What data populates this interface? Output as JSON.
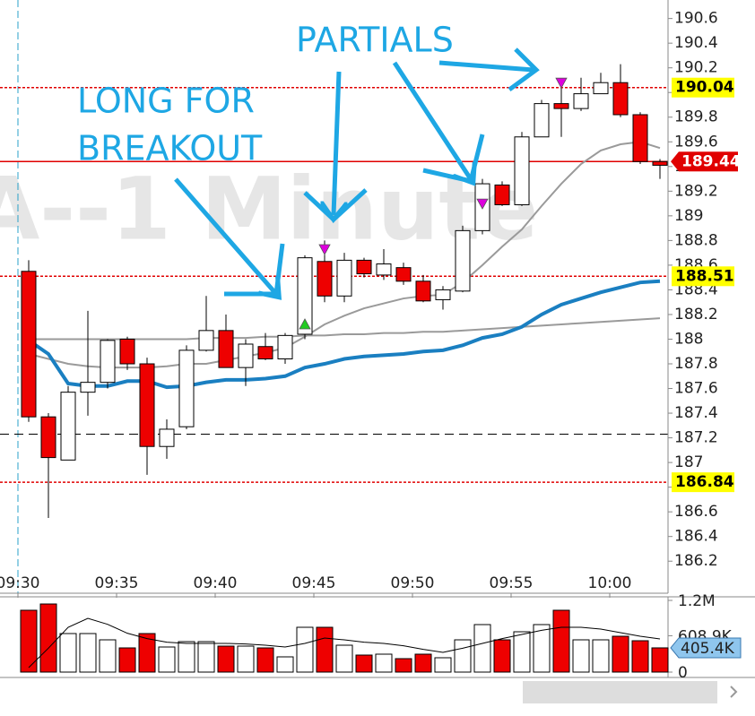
{
  "chart_data": {
    "type": "candlestick",
    "watermark": "A--1 Minute",
    "annotations": [
      "LONG FOR",
      "BREAKOUT",
      "PARTIALS"
    ],
    "ylim": [
      185.94,
      190.75
    ],
    "yticks": [
      186.2,
      186.4,
      186.6,
      186.8,
      187,
      187.2,
      187.4,
      187.6,
      187.8,
      188,
      188.2,
      188.4,
      188.6,
      188.8,
      189,
      189.2,
      189.4,
      189.6,
      189.8,
      190,
      190.2,
      190.4,
      190.6
    ],
    "xticks": [
      {
        "value": 0,
        "label": "09:30"
      },
      {
        "value": 5,
        "label": "09:35"
      },
      {
        "value": 10,
        "label": "09:40"
      },
      {
        "value": 15,
        "label": "09:45"
      },
      {
        "value": 20,
        "label": "09:50"
      },
      {
        "value": 25,
        "label": "09:55"
      },
      {
        "value": 30,
        "label": "10:00"
      }
    ],
    "up_color": "#ffffff",
    "down_color": "#ee0000",
    "candles": {
      "open": [
        188.55,
        187.37,
        187.02,
        187.57,
        187.65,
        188.0,
        187.8,
        187.13,
        187.29,
        187.91,
        188.07,
        187.77,
        187.94,
        187.84,
        188.04,
        188.63,
        188.35,
        188.64,
        188.52,
        188.58,
        188.47,
        188.32,
        188.39,
        188.88,
        189.25,
        189.09,
        189.64,
        189.91,
        189.87,
        189.99,
        190.08,
        189.82,
        189.44
      ],
      "high": [
        188.64,
        187.4,
        187.62,
        188.23,
        188.0,
        188.02,
        187.85,
        187.35,
        187.95,
        188.35,
        188.2,
        188.0,
        188.05,
        188.05,
        188.68,
        188.8,
        188.7,
        188.66,
        188.73,
        188.62,
        188.52,
        188.43,
        188.92,
        189.3,
        189.28,
        189.68,
        189.94,
        190.08,
        190.12,
        190.16,
        190.23,
        189.84,
        189.46
      ],
      "low": [
        187.33,
        186.55,
        187.02,
        187.38,
        187.6,
        187.75,
        186.9,
        187.03,
        187.27,
        187.9,
        187.77,
        187.62,
        187.83,
        187.8,
        188.0,
        188.3,
        188.3,
        188.5,
        188.48,
        188.44,
        188.3,
        188.24,
        188.38,
        188.85,
        189.08,
        189.08,
        189.64,
        189.64,
        189.85,
        189.99,
        189.8,
        189.42,
        189.3
      ],
      "close": [
        187.37,
        187.04,
        187.57,
        187.65,
        187.99,
        187.8,
        187.13,
        187.27,
        187.91,
        188.07,
        187.77,
        187.96,
        187.84,
        188.03,
        188.66,
        188.35,
        188.64,
        188.53,
        188.61,
        188.47,
        188.31,
        188.4,
        188.88,
        189.26,
        189.09,
        189.64,
        189.91,
        189.87,
        189.99,
        190.08,
        189.82,
        189.44,
        189.41
      ]
    },
    "series": [
      {
        "color": "#9a9a9a",
        "line_width": 2,
        "values": [
          188.0,
          188.0,
          188.0,
          188.0,
          188.0,
          188.0,
          188.0,
          188.0,
          188.0,
          188.01,
          188.01,
          188.01,
          188.02,
          188.02,
          188.03,
          188.03,
          188.04,
          188.04,
          188.05,
          188.05,
          188.06,
          188.06,
          188.07,
          188.08,
          188.09,
          188.1,
          188.11,
          188.12,
          188.13,
          188.14,
          188.15,
          188.16,
          188.17
        ]
      },
      {
        "color": "#9a9a9a",
        "line_width": 2,
        "values": [
          187.88,
          187.84,
          187.8,
          187.78,
          187.77,
          187.77,
          187.77,
          187.78,
          187.8,
          187.8,
          187.83,
          187.86,
          187.89,
          187.93,
          188.02,
          188.12,
          188.19,
          188.25,
          188.29,
          188.33,
          188.35,
          188.36,
          188.46,
          188.6,
          188.75,
          188.89,
          189.08,
          189.26,
          189.42,
          189.53,
          189.58,
          189.6,
          189.55
        ]
      },
      {
        "color": "#1a7fc1",
        "line_width": 4,
        "values": [
          187.99,
          187.88,
          187.64,
          187.62,
          187.62,
          187.66,
          187.66,
          187.61,
          187.62,
          187.65,
          187.67,
          187.67,
          187.68,
          187.7,
          187.77,
          187.8,
          187.84,
          187.86,
          187.87,
          187.88,
          187.9,
          187.91,
          187.95,
          188.01,
          188.04,
          188.1,
          188.2,
          188.28,
          188.33,
          188.38,
          188.42,
          188.46,
          188.47
        ]
      }
    ],
    "levels": [
      {
        "value": 190.04,
        "color": "#e00000",
        "style": "dotted",
        "label_color": "#ffff00"
      },
      {
        "value": 188.51,
        "color": "#e00000",
        "style": "dotted",
        "label_color": "#ffff00"
      },
      {
        "value": 186.84,
        "color": "#e00000",
        "style": "dotted",
        "label_color": "#ffff00"
      },
      {
        "value": 189.44,
        "color": "#e00000",
        "style": "solid",
        "label_color": "#e00000"
      },
      {
        "value": 187.23,
        "color": "#000000",
        "style": "dashed"
      }
    ],
    "markers": [
      {
        "x": 14,
        "y": 188.12,
        "direction": "up",
        "color": "#22cc22"
      },
      {
        "x": 15,
        "y": 188.73,
        "direction": "down",
        "color": "#dd00dd"
      },
      {
        "x": 23,
        "y": 189.1,
        "direction": "down",
        "color": "#dd00dd"
      },
      {
        "x": 27,
        "y": 190.08,
        "direction": "down",
        "color": "#dd00dd"
      }
    ],
    "volume": {
      "ylim": [
        0,
        1200000
      ],
      "yticks": [
        0,
        {
          "value": 608900,
          "label": "608.9K"
        },
        {
          "value": 1200000,
          "label": "1.2M"
        }
      ],
      "values": [
        1035000,
        1140000,
        645000,
        645000,
        540000,
        405000,
        645000,
        420000,
        510000,
        510000,
        435000,
        435000,
        405000,
        255000,
        750000,
        750000,
        450000,
        285000,
        300000,
        225000,
        300000,
        240000,
        540000,
        795000,
        540000,
        675000,
        795000,
        1035000,
        540000,
        540000,
        600000,
        525000,
        405400
      ],
      "value_labels": {
        "32": "405.4K"
      },
      "ma": [
        75000,
        400000,
        750000,
        900000,
        800000,
        650000,
        560000,
        500000,
        480000,
        480000,
        480000,
        470000,
        450000,
        420000,
        480000,
        570000,
        540000,
        500000,
        480000,
        440000,
        380000,
        330000,
        400000,
        480000,
        560000,
        630000,
        700000,
        750000,
        750000,
        720000,
        660000,
        600000,
        555000
      ]
    }
  }
}
